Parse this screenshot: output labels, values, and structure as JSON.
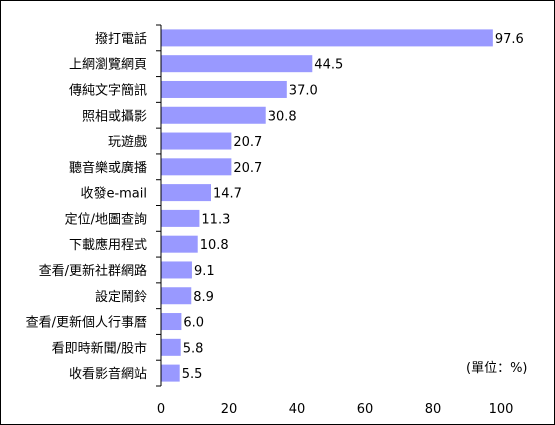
{
  "chart_data": {
    "type": "bar",
    "orientation": "horizontal",
    "categories": [
      "撥打電話",
      "上網瀏覽網頁",
      "傳純文字簡訊",
      "照相或攝影",
      "玩遊戲",
      "聽音樂或廣播",
      "收發e-mail",
      "定位/地圖查詢",
      "下載應用程式",
      "查看/更新社群網路",
      "設定鬧鈴",
      "查看/更新個人行事曆",
      "看即時新聞/股市",
      "收看影音網站"
    ],
    "values": [
      97.6,
      44.5,
      37.0,
      30.8,
      20.7,
      20.7,
      14.7,
      11.3,
      10.8,
      9.1,
      8.9,
      6.0,
      5.8,
      5.5
    ],
    "value_labels": [
      "97.6",
      "44.5",
      "37.0",
      "30.8",
      "20.7",
      "20.7",
      "14.7",
      "11.3",
      "10.8",
      "9.1",
      "8.9",
      "6.0",
      "5.8",
      "5.5"
    ],
    "xlim": [
      0,
      100
    ],
    "xticks": [
      "0",
      "20",
      "40",
      "60",
      "80",
      "100"
    ],
    "unit_label": "(單位：%)",
    "bar_color": "#9999ff",
    "grid": false
  }
}
